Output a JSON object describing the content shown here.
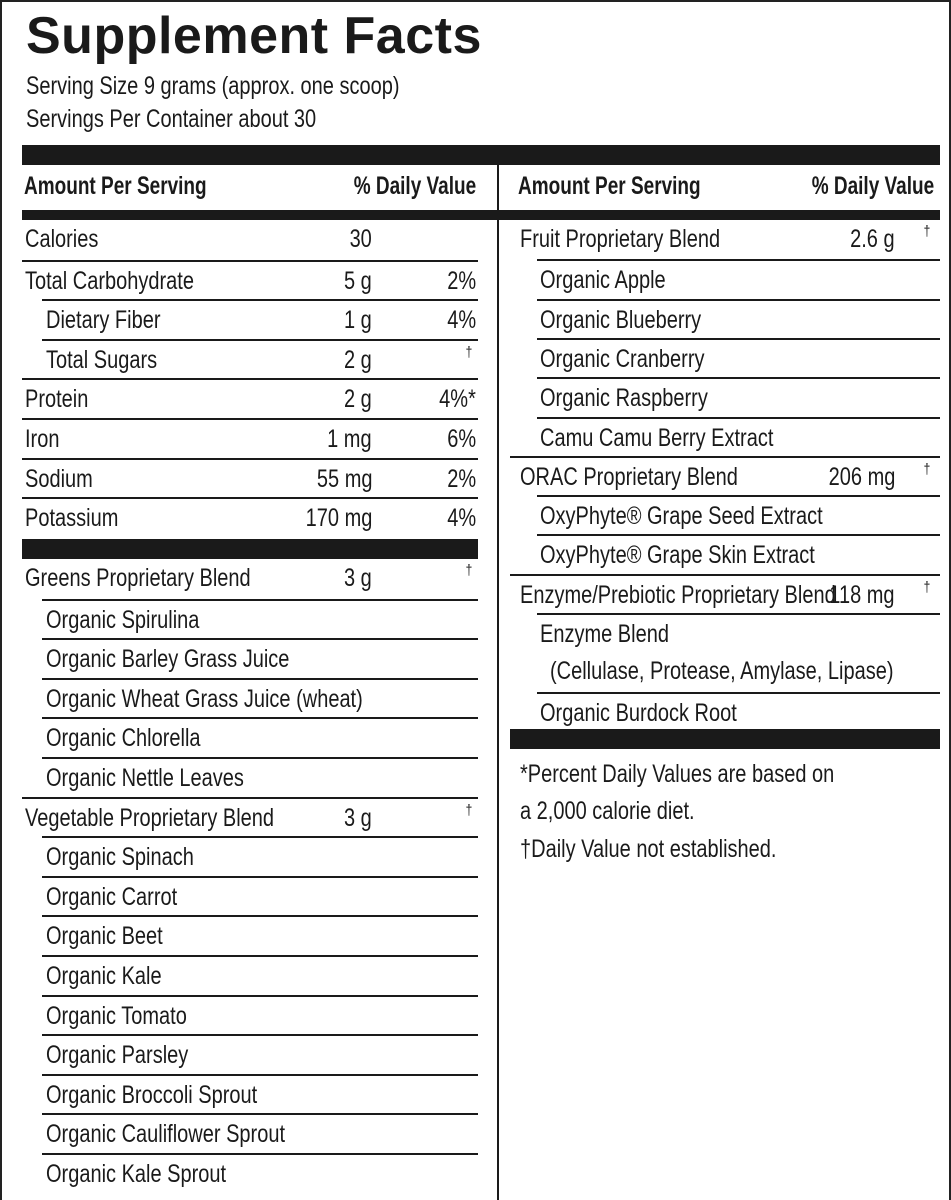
{
  "title": "Supplement Facts",
  "serving_size": "Serving Size  9 grams (approx. one scoop)",
  "servings_per_container": "Servings Per Container about 30",
  "header": {
    "amount": "Amount Per Serving",
    "daily_value": "% Daily Value"
  },
  "left_rows": [
    {
      "name": "Calories",
      "amount": "30",
      "dv": "",
      "level": 0
    },
    {
      "name": "Total Carbohydrate",
      "amount": "5 g",
      "dv": "2%",
      "level": 0
    },
    {
      "name": "Dietary Fiber",
      "amount": "1 g",
      "dv": "4%",
      "level": 1
    },
    {
      "name": "Total Sugars",
      "amount": "2 g",
      "dv": "†",
      "level": 1
    },
    {
      "name": "Protein",
      "amount": "2 g",
      "dv": "4%*",
      "level": 0
    },
    {
      "name": "Iron",
      "amount": "1 mg",
      "dv": "6%",
      "level": 0
    },
    {
      "name": "Sodium",
      "amount": "55 mg",
      "dv": "2%",
      "level": 0
    },
    {
      "name": "Potassium",
      "amount": "170 mg",
      "dv": "4%",
      "level": 0
    },
    {
      "name": "Greens Proprietary Blend",
      "amount": "3 g",
      "dv": "†",
      "level": 0,
      "after_bar": true
    },
    {
      "name": "Organic Spirulina",
      "amount": "",
      "dv": "",
      "level": 1
    },
    {
      "name": "Organic Barley Grass Juice",
      "amount": "",
      "dv": "",
      "level": 1
    },
    {
      "name": "Organic Wheat Grass Juice (wheat)",
      "amount": "",
      "dv": "",
      "level": 1
    },
    {
      "name": "Organic Chlorella",
      "amount": "",
      "dv": "",
      "level": 1
    },
    {
      "name": "Organic Nettle Leaves",
      "amount": "",
      "dv": "",
      "level": 1
    },
    {
      "name": "Vegetable Proprietary Blend",
      "amount": "3 g",
      "dv": "†",
      "level": 0
    },
    {
      "name": "Organic Spinach",
      "amount": "",
      "dv": "",
      "level": 1
    },
    {
      "name": "Organic Carrot",
      "amount": "",
      "dv": "",
      "level": 1
    },
    {
      "name": "Organic Beet",
      "amount": "",
      "dv": "",
      "level": 1
    },
    {
      "name": "Organic Kale",
      "amount": "",
      "dv": "",
      "level": 1
    },
    {
      "name": "Organic Tomato",
      "amount": "",
      "dv": "",
      "level": 1
    },
    {
      "name": "Organic Parsley",
      "amount": "",
      "dv": "",
      "level": 1
    },
    {
      "name": "Organic Broccoli Sprout",
      "amount": "",
      "dv": "",
      "level": 1
    },
    {
      "name": "Organic Cauliflower Sprout",
      "amount": "",
      "dv": "",
      "level": 1
    },
    {
      "name": "Organic Kale Sprout",
      "amount": "",
      "dv": "",
      "level": 1
    }
  ],
  "right_rows": [
    {
      "name": "Fruit Proprietary Blend",
      "amount": "2.6 g",
      "dv": "†",
      "level": 0
    },
    {
      "name": "Organic Apple",
      "amount": "",
      "dv": "",
      "level": 1
    },
    {
      "name": "Organic Blueberry",
      "amount": "",
      "dv": "",
      "level": 1
    },
    {
      "name": "Organic Cranberry",
      "amount": "",
      "dv": "",
      "level": 1
    },
    {
      "name": "Organic Raspberry",
      "amount": "",
      "dv": "",
      "level": 1
    },
    {
      "name": "Camu Camu Berry Extract",
      "amount": "",
      "dv": "",
      "level": 1
    },
    {
      "name": "ORAC Proprietary Blend",
      "amount": "206 mg",
      "dv": "†",
      "level": 0
    },
    {
      "name": "OxyPhyte® Grape Seed Extract",
      "amount": "",
      "dv": "",
      "level": 1
    },
    {
      "name": "OxyPhyte® Grape Skin Extract",
      "amount": "",
      "dv": "",
      "level": 1
    },
    {
      "name": "Enzyme/Prebiotic Proprietary Blend",
      "amount": "118 mg",
      "dv": "†",
      "level": 0
    },
    {
      "name": "Enzyme Blend",
      "amount": "",
      "dv": "",
      "level": 1
    },
    {
      "name": "(Cellulase, Protease, Amylase, Lipase)",
      "amount": "",
      "dv": "",
      "level": 2,
      "continuation": true
    },
    {
      "name": "Organic Burdock Root",
      "amount": "",
      "dv": "",
      "level": 1
    }
  ],
  "footnotes": [
    "*Percent Daily Values are based on",
    " a 2,000 calorie diet.",
    "†Daily Value not established."
  ]
}
